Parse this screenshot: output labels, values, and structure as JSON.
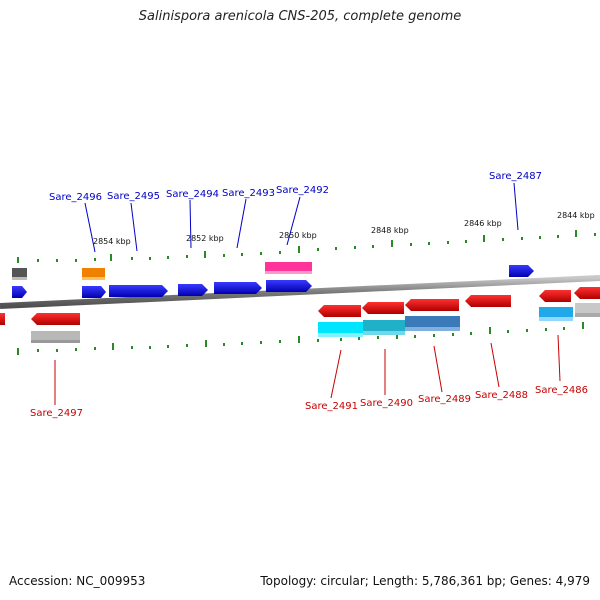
{
  "title": "Salinispora arenicola CNS-205, complete genome",
  "accession": "Accession: NC_009953",
  "summary": "Topology: circular; Length: 5,786,361 bp; Genes: 4,979",
  "colors": {
    "plus_label": "#0000c8",
    "minus_label": "#c80000",
    "backbone": "#808080",
    "tick": "#2a8a2a"
  },
  "kbp_ticks": [
    "2854 kbp",
    "2852 kbp",
    "2850 kbp",
    "2848 kbp",
    "2846 kbp",
    "2844 kbp"
  ],
  "plus_labels": [
    "Sare_2496",
    "Sare_2495",
    "Sare_2494",
    "Sare_2493",
    "Sare_2492",
    "Sare_2487"
  ],
  "minus_labels": [
    "Sare_2497",
    "Sare_2491",
    "Sare_2490",
    "Sare_2489",
    "Sare_2488",
    "Sare_2486"
  ]
}
